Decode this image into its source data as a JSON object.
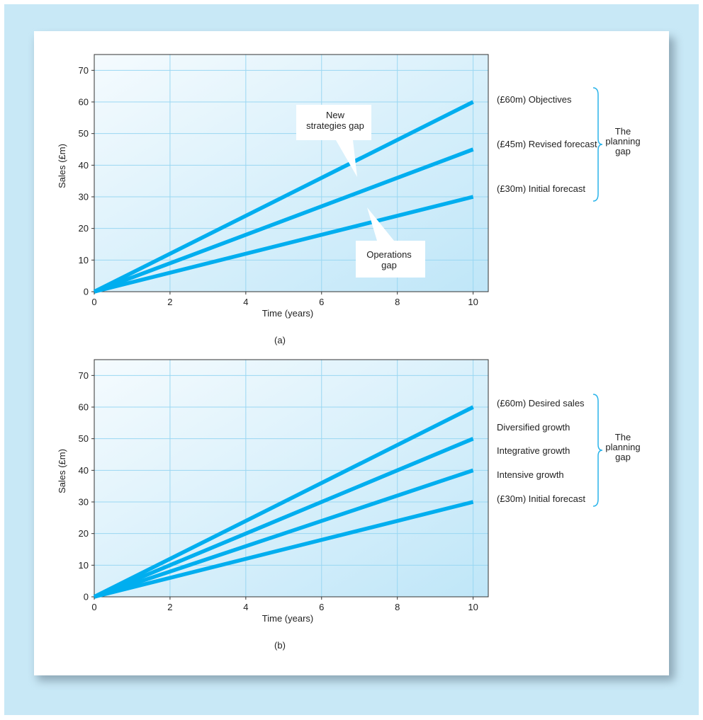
{
  "colors": {
    "frame": "#c8e8f6",
    "line": "#00aeef",
    "brace": "#2ab4ea",
    "plot_gradient_start": "#f5fbfe",
    "plot_gradient_end": "#bfe6f8",
    "grid": "#9ad7f2"
  },
  "chart_data": [
    {
      "type": "line",
      "caption": "(a)",
      "xlabel": "Time (years)",
      "ylabel": "Sales (£m)",
      "xlim": [
        0,
        10.4
      ],
      "ylim": [
        0,
        75
      ],
      "xticks": [
        "0",
        "2",
        "4",
        "6",
        "8",
        "10"
      ],
      "yticks": [
        "0",
        "10",
        "20",
        "30",
        "40",
        "50",
        "60",
        "70"
      ],
      "grid": true,
      "series": [
        {
          "name": "(£60m) Objectives",
          "x": [
            0,
            10
          ],
          "y": [
            0,
            60
          ]
        },
        {
          "name": "(£45m) Revised forecast",
          "x": [
            0,
            10
          ],
          "y": [
            0,
            45
          ]
        },
        {
          "name": "(£30m) Initial forecast",
          "x": [
            0,
            10
          ],
          "y": [
            0,
            30
          ]
        }
      ],
      "annotations": [
        {
          "text": [
            "New",
            "strategies gap"
          ]
        },
        {
          "text": [
            "Operations",
            "gap"
          ]
        }
      ],
      "brace_label": [
        "The",
        "planning",
        "gap"
      ]
    },
    {
      "type": "line",
      "caption": "(b)",
      "xlabel": "Time (years)",
      "ylabel": "Sales (£m)",
      "xlim": [
        0,
        10.4
      ],
      "ylim": [
        0,
        75
      ],
      "xticks": [
        "0",
        "2",
        "4",
        "6",
        "8",
        "10"
      ],
      "yticks": [
        "0",
        "10",
        "20",
        "30",
        "40",
        "50",
        "60",
        "70"
      ],
      "grid": true,
      "series": [
        {
          "name": "(£60m) Desired sales",
          "x": [
            0,
            10
          ],
          "y": [
            0,
            60
          ]
        },
        {
          "name": "",
          "x": [
            0,
            10
          ],
          "y": [
            0,
            50
          ]
        },
        {
          "name": "",
          "x": [
            0,
            10
          ],
          "y": [
            0,
            40
          ]
        },
        {
          "name": "(£30m) Initial forecast",
          "x": [
            0,
            10
          ],
          "y": [
            0,
            30
          ]
        }
      ],
      "band_labels": [
        "Diversified growth",
        "Integrative growth",
        "Intensive growth"
      ],
      "brace_label": [
        "The",
        "planning",
        "gap"
      ]
    }
  ]
}
